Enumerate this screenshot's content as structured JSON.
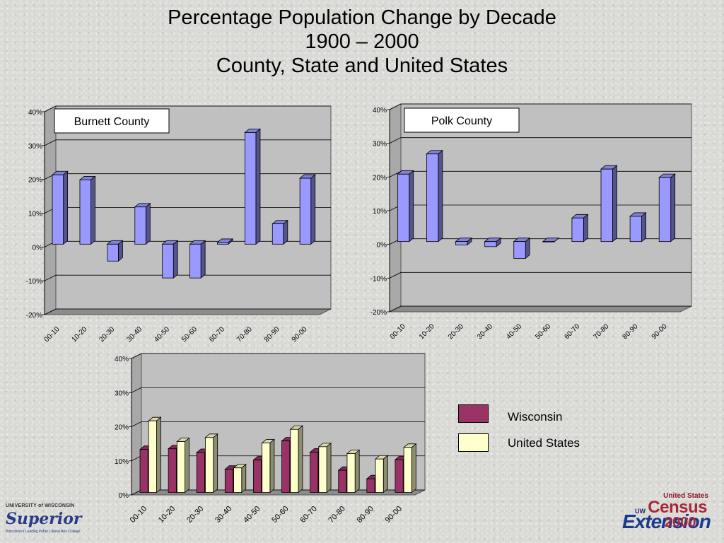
{
  "title": {
    "line1": "Percentage Population Change by Decade",
    "line2": "1900 – 2000",
    "line3": "County, State and United States"
  },
  "colors": {
    "county_bar": "#9999ff",
    "wisconsin": "#993366",
    "united_states": "#ffffcc",
    "plot_bg": "#c0c0c0"
  },
  "legend": {
    "wisconsin": "Wisconsin",
    "united_states": "United States"
  },
  "logos": {
    "left_univ": "UNIVERSITY of WISCONSIN",
    "left_name": "Superior",
    "left_tag": "Wisconsin's Leading Public Liberal Arts College",
    "right_us": "United States",
    "right_census": "Census",
    "right_uw": "UW",
    "right_ext": "Extension",
    "right_year": "2000"
  },
  "chart_data": [
    {
      "type": "bar",
      "title": "Burnett County",
      "categories": [
        "00-10",
        "10-20",
        "20-30",
        "30-40",
        "40-50",
        "50-60",
        "60-70",
        "70-80",
        "80-90",
        "90-00"
      ],
      "values": [
        20.5,
        19,
        -5,
        11,
        -10,
        -10,
        0.5,
        33,
        6,
        19.5
      ],
      "yticks": [
        "-20%",
        "-10%",
        "0%",
        "10%",
        "20%",
        "30%",
        "40%"
      ],
      "ylim": [
        -20,
        40
      ],
      "grid": true,
      "legend": "none"
    },
    {
      "type": "bar",
      "title": "Polk County",
      "categories": [
        "00-10",
        "10-20",
        "20-30",
        "30-40",
        "40-50",
        "50-60",
        "60-70",
        "70-80",
        "80-90",
        "90-00"
      ],
      "values": [
        20,
        26,
        -1,
        -1.5,
        -5,
        0,
        7,
        21.5,
        7.5,
        19
      ],
      "yticks": [
        "-20%",
        "-10%",
        "0%",
        "10%",
        "20%",
        "30%",
        "40%"
      ],
      "ylim": [
        -20,
        40
      ],
      "grid": true,
      "legend": "none"
    },
    {
      "type": "bar",
      "categories": [
        "00-10",
        "10-20",
        "20-30",
        "30-40",
        "40-50",
        "50-60",
        "60-70",
        "70-80",
        "80-90",
        "90-00"
      ],
      "series": [
        {
          "name": "Wisconsin",
          "values": [
            12.6,
            12.8,
            11.7,
            6.8,
            9.5,
            15.1,
            11.8,
            6.5,
            4.0,
            9.6
          ]
        },
        {
          "name": "United States",
          "values": [
            21.0,
            14.9,
            16.1,
            7.2,
            14.5,
            18.5,
            13.4,
            11.4,
            9.8,
            13.2
          ]
        }
      ],
      "yticks": [
        "0%",
        "10%",
        "20%",
        "30%",
        "40%"
      ],
      "ylim": [
        0,
        40
      ],
      "grid": true,
      "legend": "right"
    }
  ]
}
